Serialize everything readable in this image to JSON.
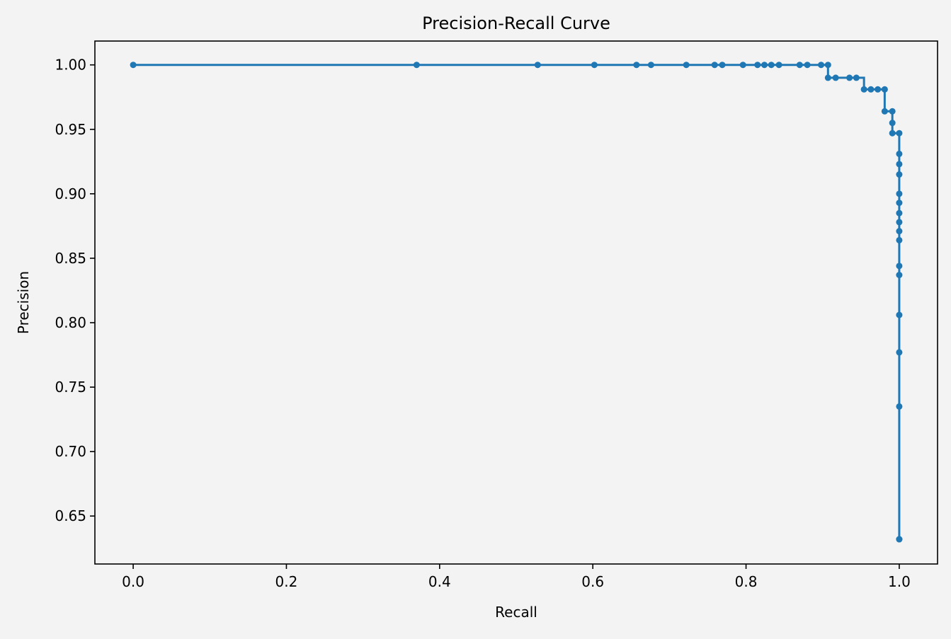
{
  "chart_data": {
    "type": "line",
    "title": "Precision-Recall Curve",
    "xlabel": "Recall",
    "ylabel": "Precision",
    "xlim": [
      -0.05,
      1.05
    ],
    "ylim": [
      0.6128,
      1.0185
    ],
    "xticks": [
      0.0,
      0.2,
      0.4,
      0.6,
      0.8,
      1.0
    ],
    "xtick_labels": [
      "0.0",
      "0.2",
      "0.4",
      "0.6",
      "0.8",
      "1.0"
    ],
    "yticks": [
      0.65,
      0.7,
      0.75,
      0.8,
      0.85,
      0.9,
      0.95,
      1.0
    ],
    "ytick_labels": [
      "0.65",
      "0.70",
      "0.75",
      "0.80",
      "0.85",
      "0.90",
      "0.95",
      "1.00"
    ],
    "grid": false,
    "legend": "none",
    "line_style": "steps-post with markers",
    "colors": {
      "series": "#1f77b4",
      "background": "#f3f3f3",
      "axes": "#000000"
    },
    "series": [
      {
        "recall": [
          0.0,
          0.37,
          0.528,
          0.602,
          0.657,
          0.676,
          0.722,
          0.759,
          0.769,
          0.796,
          0.815,
          0.824,
          0.833,
          0.843,
          0.87,
          0.88,
          0.898,
          0.907,
          0.907,
          0.917,
          0.935,
          0.944,
          0.954,
          0.963,
          0.972,
          0.981,
          0.981,
          0.991,
          0.991,
          0.991,
          1.0,
          1.0,
          1.0,
          1.0,
          1.0,
          1.0,
          1.0,
          1.0,
          1.0,
          1.0,
          1.0,
          1.0,
          1.0,
          1.0,
          1.0,
          1.0,
          1.0
        ],
        "precision": [
          1.0,
          1.0,
          1.0,
          1.0,
          1.0,
          1.0,
          1.0,
          1.0,
          1.0,
          1.0,
          1.0,
          1.0,
          1.0,
          1.0,
          1.0,
          1.0,
          1.0,
          1.0,
          0.99,
          0.99,
          0.99,
          0.99,
          0.981,
          0.981,
          0.981,
          0.981,
          0.964,
          0.964,
          0.955,
          0.947,
          0.947,
          0.931,
          0.923,
          0.915,
          0.9,
          0.893,
          0.885,
          0.878,
          0.871,
          0.864,
          0.844,
          0.837,
          0.806,
          0.777,
          0.735,
          0.632,
          0.632
        ]
      }
    ]
  }
}
